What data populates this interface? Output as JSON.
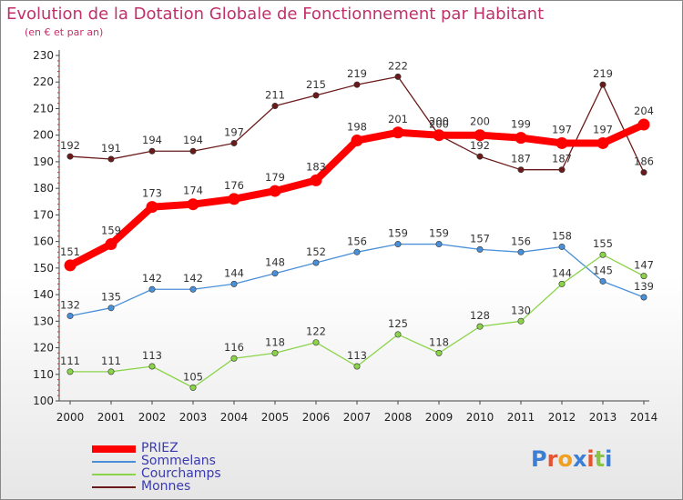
{
  "title": "Evolution de la Dotation Globale de Fonctionnement par Habitant",
  "subtitle": "(en € et par an)",
  "logo": {
    "text": "Proxiti",
    "colors": [
      "#3a7fd5",
      "#e8522e",
      "#f0a020",
      "#3a7fd5",
      "#e8522e",
      "#8bc34a",
      "#3a7fd5"
    ]
  },
  "chart_data": {
    "type": "line",
    "title": "Evolution de la Dotation Globale de Fonctionnement par Habitant",
    "ylabel": "(en € et par an)",
    "xlabel": "",
    "ylim": [
      100,
      230
    ],
    "yticks": [
      100,
      110,
      120,
      130,
      140,
      150,
      160,
      170,
      180,
      190,
      200,
      210,
      220,
      230
    ],
    "grid": false,
    "legend_position": "bottom-left",
    "categories": [
      "2000",
      "2001",
      "2002",
      "2003",
      "2004",
      "2005",
      "2006",
      "2007",
      "2008",
      "2009",
      "2010",
      "2011",
      "2012",
      "2013",
      "2014"
    ],
    "series": [
      {
        "name": "PRIEZ",
        "color": "#ff0000",
        "values": [
          151,
          159,
          173,
          174,
          176,
          179,
          183,
          198,
          201,
          200,
          200,
          199,
          197,
          197,
          204
        ]
      },
      {
        "name": "Sommelans",
        "color": "#4a90d9",
        "values": [
          132,
          135,
          142,
          142,
          144,
          148,
          152,
          156,
          159,
          159,
          157,
          156,
          158,
          145,
          139
        ]
      },
      {
        "name": "Courchamps",
        "color": "#8bd44a",
        "values": [
          111,
          111,
          113,
          105,
          116,
          118,
          122,
          113,
          125,
          118,
          128,
          130,
          144,
          155,
          147
        ]
      },
      {
        "name": "Monnes",
        "color": "#6b1a1a",
        "values": [
          192,
          191,
          194,
          194,
          197,
          211,
          215,
          219,
          222,
          200,
          192,
          187,
          187,
          219,
          186
        ]
      }
    ]
  }
}
